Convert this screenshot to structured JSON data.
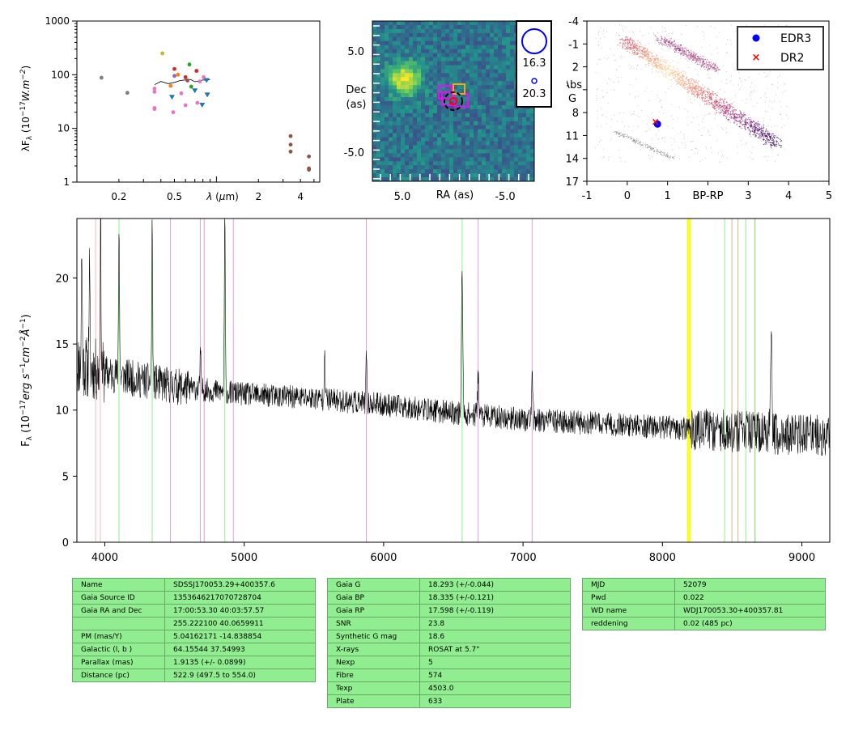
{
  "chart_data": [
    {
      "type": "scatter",
      "ylabel": "λF_λ (10^-17 W.m^-2)",
      "xlabel": "λ (μm)",
      "log_x": true,
      "log_y": true,
      "xlim": [
        0.1,
        5.5
      ],
      "ylim": [
        1,
        1000
      ],
      "y_ticks": [
        "1",
        "10",
        "100",
        "1000"
      ],
      "x_ticks": [
        "0.2",
        "0.5",
        "2",
        "4"
      ],
      "spectrum_line": {
        "x": [
          0.36,
          0.4,
          0.45,
          0.5,
          0.55,
          0.6,
          0.65,
          0.7,
          0.75,
          0.8,
          0.85,
          0.9
        ],
        "y": [
          65,
          75,
          68,
          72,
          78,
          80,
          82,
          74,
          76,
          80,
          79,
          81
        ]
      },
      "points": [
        {
          "x": 0.15,
          "y": 88,
          "color": "#7f7f7f"
        },
        {
          "x": 0.23,
          "y": 46,
          "color": "#7f7f7f"
        },
        {
          "x": 0.36,
          "y": 55,
          "color": "#e377c2"
        },
        {
          "x": 0.36,
          "y": 48,
          "color": "#e377c2"
        },
        {
          "x": 0.36,
          "y": 24,
          "color": "#e377c2"
        },
        {
          "x": 0.36,
          "y": 23,
          "color": "#e377c2"
        },
        {
          "x": 0.41,
          "y": 250,
          "color": "#bcbd22"
        },
        {
          "x": 0.47,
          "y": 62,
          "color": "#ff7f0e"
        },
        {
          "x": 0.48,
          "y": 38,
          "color": "#1f77b4"
        },
        {
          "x": 0.49,
          "y": 20,
          "color": "#e377c2"
        },
        {
          "x": 0.5,
          "y": 128,
          "color": "#d62728"
        },
        {
          "x": 0.5,
          "y": 95,
          "color": "#9467bd"
        },
        {
          "x": 0.53,
          "y": 100,
          "color": "#ff7f0e"
        },
        {
          "x": 0.56,
          "y": 45,
          "color": "#e377c2"
        },
        {
          "x": 0.6,
          "y": 90,
          "color": "#d62728"
        },
        {
          "x": 0.6,
          "y": 27,
          "color": "#e377c2"
        },
        {
          "x": 0.62,
          "y": 78,
          "color": "#8c564b"
        },
        {
          "x": 0.64,
          "y": 155,
          "color": "#2ca02c"
        },
        {
          "x": 0.66,
          "y": 60,
          "color": "#2ca02c"
        },
        {
          "x": 0.7,
          "y": 50,
          "color": "#1f77b4"
        },
        {
          "x": 0.72,
          "y": 118,
          "color": "#d62728"
        },
        {
          "x": 0.73,
          "y": 30,
          "color": "#e377c2"
        },
        {
          "x": 0.76,
          "y": 75,
          "color": "#e377c2"
        },
        {
          "x": 0.79,
          "y": 27,
          "color": "#1f77b4"
        },
        {
          "x": 0.81,
          "y": 90,
          "color": "#e377c2"
        },
        {
          "x": 0.85,
          "y": 78,
          "color": "#1f77b4"
        },
        {
          "x": 0.86,
          "y": 42,
          "color": "#1f77b4"
        },
        {
          "x": 3.4,
          "y": 7.2,
          "color": "#8c564b"
        },
        {
          "x": 3.4,
          "y": 5.0,
          "color": "#8c564b"
        },
        {
          "x": 3.4,
          "y": 3.7,
          "color": "#8c564b"
        },
        {
          "x": 4.6,
          "y": 3.0,
          "color": "#8c564b"
        },
        {
          "x": 4.6,
          "y": 1.8,
          "color": "#8c564b"
        },
        {
          "x": 4.6,
          "y": 1.7,
          "color": "#8c564b"
        }
      ]
    },
    {
      "type": "heatmap",
      "xlabel": "RA (as)",
      "ylabel": "Dec (as)",
      "x_ticks": [
        "5.0",
        "-5.0"
      ],
      "y_ticks": [
        "5.0",
        "-5.0"
      ],
      "legend_mags": [
        "16.3",
        "20.3"
      ]
    },
    {
      "type": "scatter",
      "xlabel": "BP-RP",
      "ylabel": "Abs G",
      "xlim": [
        -1,
        5
      ],
      "ylim": [
        17,
        -4
      ],
      "x_ticks": [
        "-1",
        "0",
        "1",
        "BP-RP",
        "3",
        "4",
        "5"
      ],
      "y_ticks": [
        "-4",
        "-1",
        "2",
        "5",
        "8",
        "11",
        "14",
        "17"
      ],
      "legend": [
        "EDR3",
        "DR2"
      ],
      "legend_placement": "top-right",
      "points": [
        {
          "series": "EDR3",
          "x": 0.75,
          "y": 9.5,
          "color": "#0000ff"
        },
        {
          "series": "DR2",
          "x": 0.7,
          "y": 9.2,
          "color": "#ff0000"
        }
      ]
    },
    {
      "type": "line",
      "ylabel": "F_λ (10^-17 erg s^-1 cm^-2 Å^-1)",
      "xlim": [
        3800,
        9200
      ],
      "ylim": [
        0,
        24.5
      ],
      "x_ticks": [
        "4000",
        "5000",
        "6000",
        "7000",
        "8000",
        "9000"
      ],
      "y_ticks": [
        "0",
        "5",
        "10",
        "15",
        "20"
      ],
      "line_color": "#000000",
      "continuum": [
        [
          3800,
          13.5
        ],
        [
          4000,
          12.8
        ],
        [
          4500,
          11.8
        ],
        [
          5000,
          11.2
        ],
        [
          5500,
          10.9
        ],
        [
          6000,
          10.4
        ],
        [
          6500,
          9.8
        ],
        [
          7000,
          9.3
        ],
        [
          7500,
          9.0
        ],
        [
          8000,
          8.7
        ],
        [
          8500,
          8.4
        ],
        [
          9200,
          8.0
        ]
      ],
      "emission_lines": [
        {
          "x": 3835,
          "peak": 22.0
        },
        {
          "x": 3890,
          "peak": 20.5
        },
        {
          "x": 3970,
          "peak": 24.5
        },
        {
          "x": 4102,
          "peak": 24.5
        },
        {
          "x": 4340,
          "peak": 24.5
        },
        {
          "x": 4686,
          "peak": 14.5
        },
        {
          "x": 4861,
          "peak": 24.5
        },
        {
          "x": 5577,
          "peak": 15.0
        },
        {
          "x": 5876,
          "peak": 14.0
        },
        {
          "x": 6563,
          "peak": 20.2
        },
        {
          "x": 6678,
          "peak": 12.8
        },
        {
          "x": 7065,
          "peak": 12.2
        },
        {
          "x": 8780,
          "peak": 17.0
        }
      ],
      "vlines": [
        {
          "x": 3934,
          "color": "#ffb6c1"
        },
        {
          "x": 3968,
          "color": "#ffb6c1"
        },
        {
          "x": 4102,
          "color": "#90ee90"
        },
        {
          "x": 4340,
          "color": "#90ee90"
        },
        {
          "x": 4471,
          "color": "#dda0dd"
        },
        {
          "x": 4686,
          "color": "#dda0dd"
        },
        {
          "x": 4713,
          "color": "#dda0dd"
        },
        {
          "x": 4861,
          "color": "#90ee90"
        },
        {
          "x": 4922,
          "color": "#dda0dd"
        },
        {
          "x": 5876,
          "color": "#dda0dd"
        },
        {
          "x": 6563,
          "color": "#90ee90"
        },
        {
          "x": 6678,
          "color": "#dda0dd"
        },
        {
          "x": 7065,
          "color": "#dda0dd"
        },
        {
          "x": 8183,
          "color": "#ffff00"
        },
        {
          "x": 8195,
          "color": "#ffff00"
        },
        {
          "x": 8446,
          "color": "#90ee90"
        },
        {
          "x": 8498,
          "color": "#d2b48c"
        },
        {
          "x": 8542,
          "color": "#d2b48c"
        },
        {
          "x": 8598,
          "color": "#90ee90"
        },
        {
          "x": 8662,
          "color": "#d2b48c"
        },
        {
          "x": 8665,
          "color": "#90ee90"
        }
      ]
    }
  ],
  "table1": [
    [
      "Name",
      "SDSSJ170053.29+400357.6"
    ],
    [
      "Gaia Source ID",
      "1353646217070728704"
    ],
    [
      "Gaia RA and Dec",
      "17:00:53.30    40:03:57.57"
    ],
    [
      "",
      "255.222100    40.0659911"
    ],
    [
      "PM (mas/Y)",
      "5.04162171    -14.838854"
    ],
    [
      "Galactic (l, b )",
      "64.15544    37.54993"
    ],
    [
      "Parallax (mas)",
      "1.9135 (+/- 0.0899)"
    ],
    [
      "Distance (pc)",
      "522.9 (497.5 to 554.0)"
    ]
  ],
  "table2": [
    [
      "Gaia G",
      "18.293 (+/-0.044)"
    ],
    [
      "Gaia BP",
      "18.335 (+/-0.121)"
    ],
    [
      "Gaia RP",
      "17.598 (+/-0.119)"
    ],
    [
      "SNR",
      "23.8"
    ],
    [
      "Synthetic G mag",
      "18.6"
    ],
    [
      "X-rays",
      "ROSAT at 5.7\""
    ],
    [
      "Nexp",
      "5"
    ],
    [
      "Fibre",
      "574"
    ],
    [
      "Texp",
      "4503.0"
    ],
    [
      "Plate",
      "633"
    ]
  ],
  "table3": [
    [
      "MJD",
      "52079"
    ],
    [
      "Pwd",
      "0.022"
    ],
    [
      "WD name",
      "WDJ170053.30+400357.81"
    ],
    [
      "reddening",
      "0.02 (485 pc)"
    ]
  ]
}
